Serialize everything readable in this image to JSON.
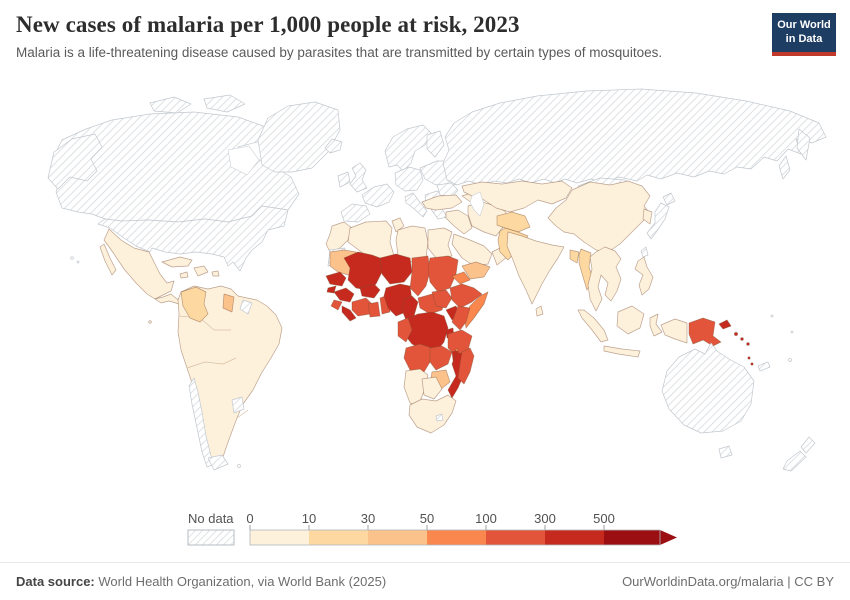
{
  "header": {
    "title": "New cases of malaria per 1,000 people at risk, 2023",
    "subtitle": "Malaria is a life-threatening disease caused by parasites that are transmitted by certain types of mosquitoes."
  },
  "logo": {
    "line1": "Our World",
    "line2": "in Data",
    "bg_color": "#1d3d63",
    "accent_color": "#c0392b"
  },
  "legend": {
    "no_data_label": "No data",
    "ticks": [
      "0",
      "10",
      "30",
      "50",
      "100",
      "300",
      "500"
    ],
    "bins": [
      {
        "range": "0-10",
        "color": "#fdf1dc"
      },
      {
        "range": "10-30",
        "color": "#fdd9a1"
      },
      {
        "range": "30-50",
        "color": "#fcc28c"
      },
      {
        "range": "50-100",
        "color": "#f9874e"
      },
      {
        "range": "100-300",
        "color": "#e2553a"
      },
      {
        "range": "300-500",
        "color": "#c62a1e"
      },
      {
        "range": "500+",
        "color": "#9b0f12"
      }
    ],
    "no_data_pattern_color": "#d3d7db"
  },
  "footer": {
    "source_label": "Data source:",
    "source_value": " World Health Organization, via World Bank (2025)",
    "attribution": "OurWorldinData.org/malaria | CC BY"
  },
  "chart_data": {
    "type": "choropleth",
    "title": "New cases of malaria per 1,000 people at risk",
    "year": 2023,
    "unit": "new cases per 1,000 people at risk",
    "legend_thresholds": [
      0,
      10,
      30,
      50,
      100,
      300,
      500
    ],
    "no_data_regions_note": "North America, Europe, Russia, Mongolia, Japan, Australia, New Zealand, Chile, Uruguay shown as no data",
    "regions": {
      "canada": "no-data",
      "alaska": "no-data",
      "usa": "no-data",
      "greenland": "no-data",
      "arctic-island-1": "no-data",
      "arctic-island-2": "no-data",
      "iceland": "no-data",
      "uk": "no-data",
      "ireland": "no-data",
      "scandinavia": "no-data",
      "finland": "no-data",
      "east-europe": "no-data",
      "central-europe": "no-data",
      "france": "no-data",
      "iberia": "no-data",
      "italy": "no-data",
      "balkans": "no-data",
      "romania": "no-data",
      "russia": "no-data",
      "kamchatka": "no-data",
      "sakhalin": "no-data",
      "mongolia": "no-data",
      "japan": "no-data",
      "hokkaido": "no-data",
      "taiwan": "no-data",
      "western-sahara": "no-data",
      "french-guiana": "no-data",
      "chile": "no-data",
      "tierra-del-fuego": "no-data",
      "uruguay": "no-data",
      "falkland-islands": "no-data",
      "australia": "no-data",
      "tasmania": "no-data",
      "new-zealand-north": "no-data",
      "new-zealand-south": "no-data",
      "new-caledonia": "no-data",
      "fiji": "no-data",
      "micronesia-1": "no-data",
      "micronesia-2": "no-data",
      "hawaii-1": "no-data",
      "hawaii-2": "no-data",
      "lesotho": "no-data",
      "mexico": "0-10",
      "baja-california": "0-10",
      "central-america": "0-10",
      "cuba": "0-10",
      "hispaniola": "0-10",
      "jamaica": "0-10",
      "puerto-rico": "0-10",
      "south-america": "0-10",
      "galapagos": "0-10",
      "morocco": "0-10",
      "algeria": "0-10",
      "tunisia": "0-10",
      "libya": "0-10",
      "egypt": "0-10",
      "turkey": "0-10",
      "levant-iraq": "0-10",
      "saudi-arabia": "0-10",
      "oman": "0-10",
      "iran": "0-10",
      "caucasus": "0-10",
      "central-asia": "0-10",
      "china": "0-10",
      "korea": "0-10",
      "india": "0-10",
      "sri-lanka": "0-10",
      "indochina": "0-10",
      "sumatra": "0-10",
      "java": "0-10",
      "borneo": "0-10",
      "sulawesi": "0-10",
      "west-new-guinea": "0-10",
      "philippines": "0-10",
      "namibia": "0-10",
      "botswana": "0-10",
      "south-africa": "0-10",
      "colombia": "10-30",
      "afghanistan": "10-30",
      "pakistan": "10-30",
      "bangladesh": "10-30",
      "myanmar": "10-30",
      "guyana": "30-50",
      "mauritania": "30-50",
      "yemen": "30-50",
      "zimbabwe": "30-50",
      "somalia": "50-100",
      "eritrea": "50-100",
      "comoros": "50-100",
      "sierra-leone": "100-300",
      "cote-divoire": "100-300",
      "ghana": "100-300",
      "togo-benin": "100-300",
      "chad": "100-300",
      "sudan": "100-300",
      "south-sudan": "100-300",
      "ethiopia": "100-300",
      "kenya": "100-300",
      "central-african-republic": "100-300",
      "congo-gabon": "100-300",
      "tanzania": "100-300",
      "angola": "100-300",
      "zambia": "100-300",
      "madagascar": "100-300",
      "papua-new-guinea": "100-300",
      "senegal": "300-500",
      "guinea-bissau": "300-500",
      "guinea": "300-500",
      "liberia": "300-500",
      "mali": "300-500",
      "burkina-faso": "300-500",
      "niger": "300-500",
      "nigeria": "300-500",
      "cameroon": "300-500",
      "drc": "300-500",
      "uganda": "300-500",
      "rwanda-burundi": "300-500",
      "malawi": "300-500",
      "mozambique": "300-500",
      "new-britain": "300-500",
      "solomon-1": "300-500",
      "solomon-2": "300-500",
      "solomon-3": "300-500",
      "vanuatu-1": "300-500",
      "vanuatu-2": "300-500"
    }
  }
}
